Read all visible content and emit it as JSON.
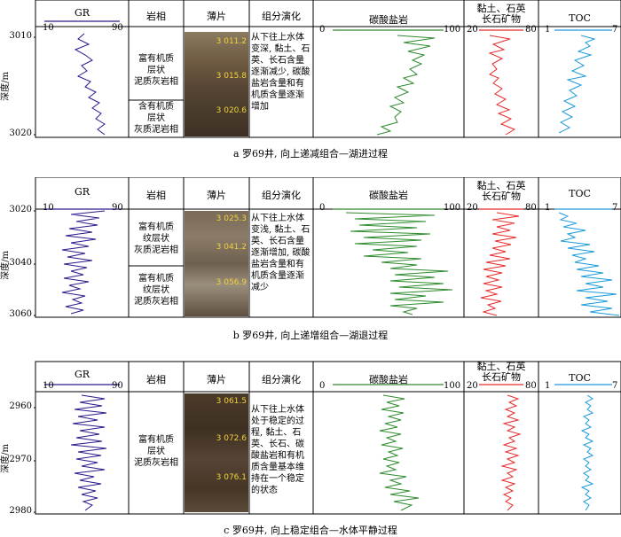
{
  "headers": {
    "gr": "GR",
    "facies": "岩相",
    "thin_section": "薄片",
    "evolution": "组分演化",
    "carbonate": "碳酸盐岩",
    "clay_quartz": "黏土、石英\n长石矿物",
    "toc": "TOC"
  },
  "axes": {
    "gr": [
      "10",
      "90"
    ],
    "carbonate": [
      "0",
      "100"
    ],
    "clay": [
      "20",
      "80"
    ],
    "toc": [
      "1",
      "7"
    ]
  },
  "depth_label": "深度/m",
  "colors": {
    "gr": "#2b1a8c",
    "carbonate": "#2e8b2e",
    "clay": "#e52b2b",
    "toc": "#1a9ad9"
  },
  "panels": [
    {
      "caption": "a  罗69井, 向上递减组合—湖进过程",
      "depths": [
        "3010",
        "3020"
      ],
      "facies": [
        "富有机质\n层状\n泥质灰岩相",
        "含有机质\n层状\n灰质泥岩相"
      ],
      "evolution": "从下往上水体\n变深, 黏土、石\n英、长石含量\n逐渐减少, 碳酸\n盐岩含量和有\n机质含量逐渐\n增加",
      "thin_labels": [
        "3 011.2",
        "3 015.8",
        "3 020.6"
      ]
    },
    {
      "caption": "b  罗69井, 向上递增组合—湖退过程",
      "depths": [
        "3020",
        "3040",
        "3060"
      ],
      "facies": [
        "富有机质\n纹层状\n灰质泥岩相",
        "富有机质\n纹层状\n泥质灰岩相"
      ],
      "evolution": "从下往上水体\n变浅, 黏土、石\n英、长石含量\n逐渐增加, 碳酸\n盐岩含量和有\n机质含量逐渐\n减少",
      "thin_labels": [
        "3 025.3",
        "3 041.2",
        "3 056.9"
      ]
    },
    {
      "caption": "c  罗69井, 向上稳定组合—水体平静过程",
      "depths": [
        "2960",
        "2970",
        "2980"
      ],
      "facies": [
        "富有机质\n层状\n泥质灰岩相"
      ],
      "evolution": "从下往上水体\n处于稳定的过\n程, 黏土、石\n英、长石、碳\n酸盐岩和有机\n质含量基本维\n持在一个稳定\n的状态",
      "thin_labels": [
        "3 061.5",
        "3 072.6",
        "3 076.1"
      ]
    }
  ]
}
